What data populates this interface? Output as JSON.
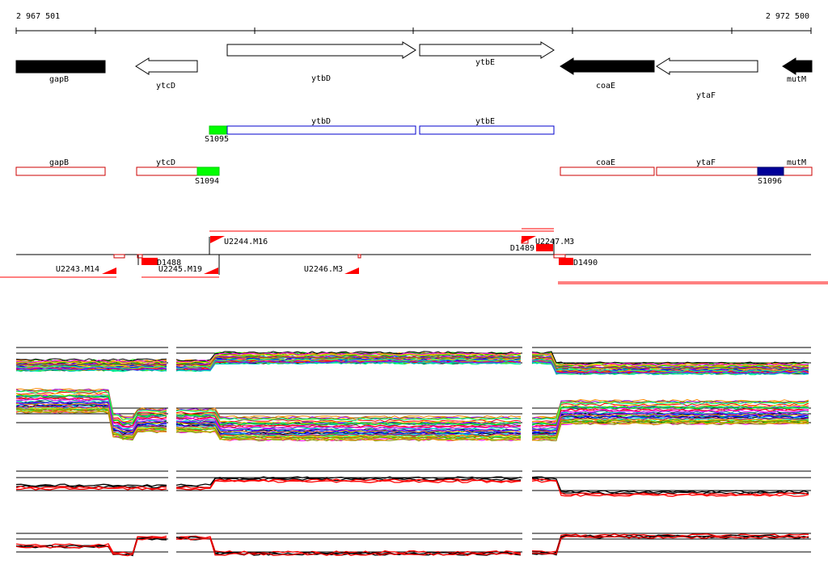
{
  "ruler": {
    "start_label": "2 967 501",
    "end_label": "2 972 500"
  },
  "genes": [
    {
      "label": "gapB",
      "strand": "reverse",
      "filled": true
    },
    {
      "label": "ytcD",
      "strand": "reverse",
      "filled": false
    },
    {
      "label": "ytbD",
      "strand": "forward",
      "filled": false
    },
    {
      "label": "ytbE",
      "strand": "forward",
      "filled": false
    },
    {
      "label": "coaE",
      "strand": "reverse",
      "filled": true
    },
    {
      "label": "ytaF",
      "strand": "reverse",
      "filled": false
    },
    {
      "label": "mutM",
      "strand": "reverse",
      "filled": true
    }
  ],
  "forward_transcripts": [
    {
      "label": "ytbD"
    },
    {
      "label": "ytbE"
    }
  ],
  "forward_elements": [
    {
      "label": "S1095",
      "color": "#00ff00"
    }
  ],
  "reverse_transcripts": [
    {
      "label": "gapB"
    },
    {
      "label": "ytcD"
    },
    {
      "label": "coaE"
    },
    {
      "label": "ytaF"
    },
    {
      "label": "mutM"
    }
  ],
  "reverse_elements": [
    {
      "label": "S1094",
      "color": "#00ff00"
    },
    {
      "label": "S1096",
      "color": "#000099"
    }
  ],
  "upshifts": [
    {
      "label": "U2243.M14"
    },
    {
      "label": "U2244.M16"
    },
    {
      "label": "U2245.M19"
    },
    {
      "label": "U2246.M3"
    },
    {
      "label": "U2247.M3"
    }
  ],
  "downshifts": [
    {
      "label": "D1488"
    },
    {
      "label": "D1489"
    },
    {
      "label": "D1490"
    }
  ],
  "colors": {
    "transcript_forward": "#0000cc",
    "transcript_reverse": "#cc0000",
    "shift_marker": "#ff0000",
    "gene_fill": "#000000"
  },
  "tiling_palette": [
    "#ff0000",
    "#00cc00",
    "#0000ff",
    "#ff00ff",
    "#00cccc",
    "#ffcc00",
    "#ff8800",
    "#8800ff",
    "#00ff88",
    "#888800",
    "#008888",
    "#cc0066",
    "#3366ff",
    "#99cc00",
    "#000000"
  ]
}
